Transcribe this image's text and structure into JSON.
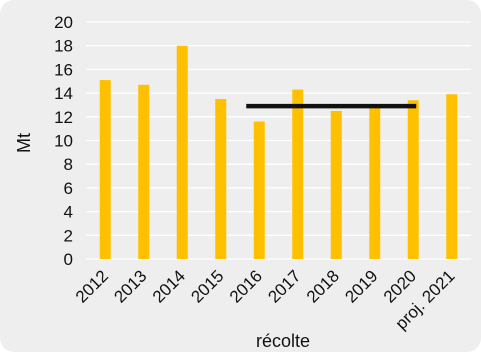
{
  "chart_data": {
    "type": "bar",
    "title": "",
    "xlabel": "récolte",
    "ylabel": "Mt",
    "categories": [
      "2012",
      "2013",
      "2014",
      "2015",
      "2016",
      "2017",
      "2018",
      "2019",
      "2020",
      "proj. 2021"
    ],
    "values": [
      15.1,
      14.7,
      18.0,
      13.5,
      11.6,
      14.3,
      12.5,
      12.8,
      13.4,
      13.9
    ],
    "reference_line": {
      "value": 12.9,
      "from": "2016",
      "to": "2020",
      "color": "#111111"
    },
    "ylim": [
      0,
      20
    ],
    "yticks": [
      "0",
      "2",
      "4",
      "6",
      "8",
      "10",
      "12",
      "14",
      "16",
      "18",
      "20"
    ],
    "grid": true,
    "bar_color": "#FFC000",
    "grid_color": "#ffffff"
  }
}
